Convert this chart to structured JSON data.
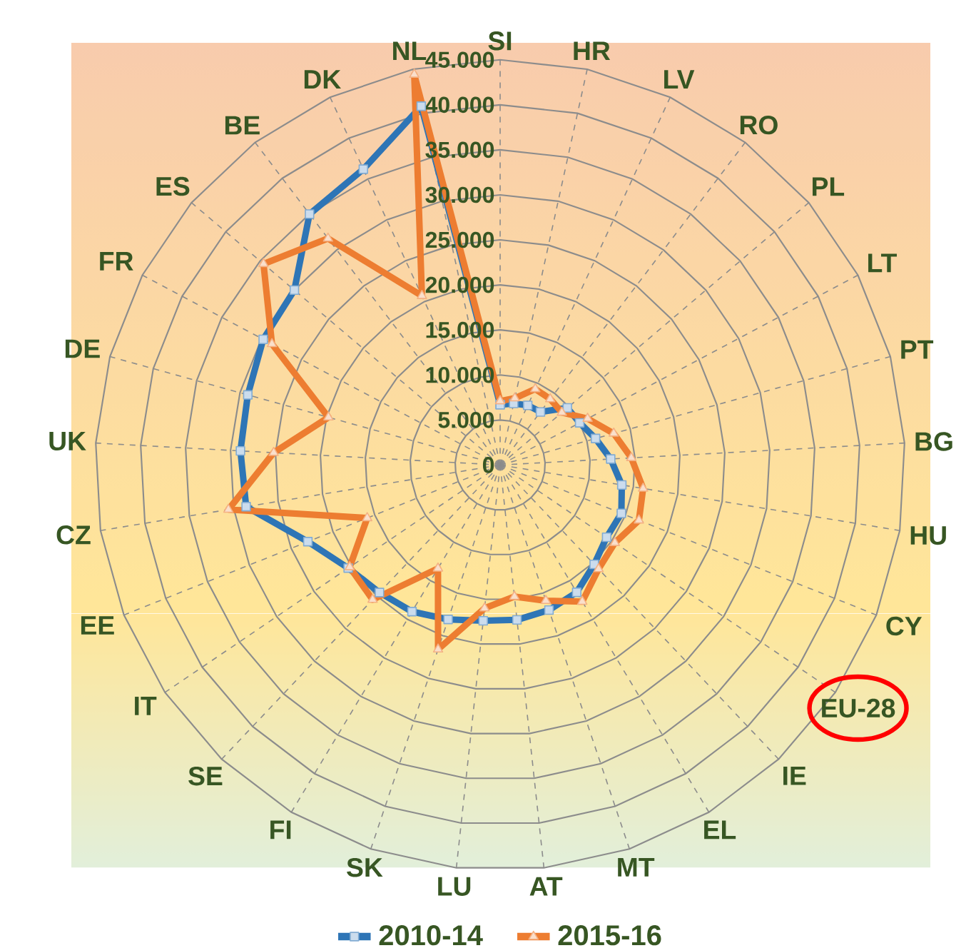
{
  "chart_data": {
    "type": "radar",
    "categories": [
      "SI",
      "HR",
      "LV",
      "RO",
      "PL",
      "LT",
      "PT",
      "BG",
      "HU",
      "CY",
      "EU-28",
      "IE",
      "EL",
      "MT",
      "AT",
      "LU",
      "SK",
      "FI",
      "SE",
      "IT",
      "EE",
      "CZ",
      "UK",
      "DE",
      "FR",
      "ES",
      "BE",
      "DK",
      "NL"
    ],
    "ylim": [
      0,
      45000
    ],
    "yticks": [
      0,
      {
        "value": 5000,
        "label": "5.000"
      },
      {
        "value": 10000,
        "label": "10.000"
      },
      {
        "value": 15000,
        "label": "15.000"
      },
      {
        "value": 20000,
        "label": "20.000"
      },
      {
        "value": 25000,
        "label": "25.000"
      },
      {
        "value": 30000,
        "label": "30.000"
      },
      {
        "value": 35000,
        "label": "35.000"
      },
      {
        "value": 40000,
        "label": "40.000"
      },
      {
        "value": 45000,
        "label": "45.000"
      }
    ],
    "grid": true,
    "legend": "bottom",
    "line_style": "solid",
    "series": [
      {
        "name": "2010-14",
        "color": "#2e75b6",
        "marker": "square",
        "values": [
          6700,
          7000,
          7300,
          7400,
          9800,
          10000,
          11000,
          12300,
          13700,
          14500,
          14300,
          15200,
          16500,
          17000,
          17300,
          17400,
          18100,
          19000,
          19500,
          20400,
          23000,
          28600,
          28900,
          29100,
          29800,
          30000,
          35000,
          36200,
          40800
        ]
      },
      {
        "name": "2015-16",
        "color": "#ed7d31",
        "marker": "triangle",
        "values": [
          7100,
          7600,
          9300,
          9200,
          9000,
          11000,
          13100,
          14600,
          16100,
          16600,
          15400,
          15900,
          17700,
          15900,
          14700,
          16000,
          21600,
          13400,
          20600,
          20200,
          15900,
          30600,
          25200,
          19800,
          28700,
          34500,
          31600,
          20700,
          44400
        ]
      }
    ]
  }
}
